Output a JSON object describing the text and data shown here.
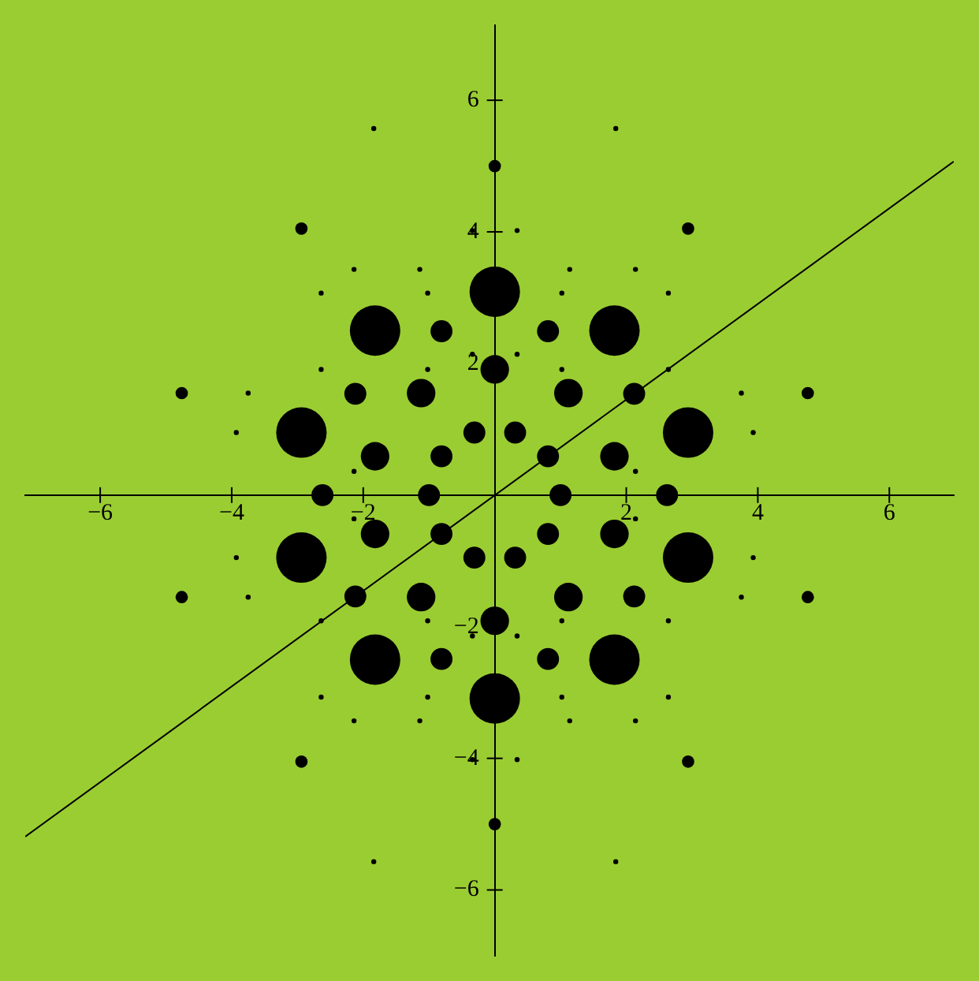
{
  "chart_data": {
    "type": "bubble",
    "xlim": [
      -7.14,
      6.98
    ],
    "ylim": [
      -7.0,
      7.14
    ],
    "xticks": [
      {
        "value": -6,
        "label": "−6"
      },
      {
        "value": -4,
        "label": "−4"
      },
      {
        "value": -2,
        "label": "−2"
      },
      2,
      4,
      6
    ],
    "yticks": [
      {
        "value": -6,
        "label": "−6"
      },
      {
        "value": -4,
        "label": "−4"
      },
      {
        "value": -2,
        "label": "−2"
      },
      2,
      4,
      6
    ],
    "grid": false,
    "legend": false,
    "series": [
      {
        "type": "bubble",
        "color": "#000000",
        "x": [
          0,
          1.82,
          2.94,
          2.94,
          1.82,
          0,
          -1.82,
          -2.94,
          -2.94,
          -1.82,
          0,
          1.12,
          1.82,
          1.82,
          1.12,
          0,
          -1.12,
          -1.82,
          -1.82,
          -1.12,
          2.62,
          2.12,
          0.81,
          -0.81,
          -2.12,
          -2.62,
          -2.12,
          -0.81,
          0.81,
          2.12,
          1,
          0.81,
          0.31,
          -0.31,
          -0.81,
          -1,
          -0.81,
          -0.31,
          0.31,
          0.81,
          4.76,
          2.94,
          0,
          -2.94,
          -4.76,
          -4.76,
          -2.94,
          0,
          2.94,
          4.76,
          1.02,
          -1.02,
          1.02,
          -1.02,
          2.64,
          -2.64,
          2.64,
          -2.64,
          1.14,
          -1.14,
          1.14,
          -1.14,
          2.14,
          -2.14,
          2.14,
          -2.14,
          1.84,
          -1.84,
          1.84,
          -1.84,
          3.93,
          -3.93,
          3.93,
          -3.93,
          3.75,
          -3.75,
          3.75,
          -3.75,
          0.34,
          -0.34,
          0.34,
          -0.34,
          0.34,
          -0.34,
          0.34,
          -0.34,
          1.02,
          -1.02,
          1.02,
          -1.02,
          2.64,
          -2.64,
          2.64,
          -2.64,
          2.14,
          -2.14,
          2.14,
          -2.14
        ],
        "values": [
          3.09,
          2.5,
          0.95,
          -0.95,
          -2.5,
          -3.09,
          -2.5,
          -0.95,
          0.95,
          2.5,
          1.91,
          1.55,
          0.59,
          -0.59,
          -1.55,
          -1.91,
          -1.55,
          -0.59,
          0.59,
          1.55,
          0,
          1.54,
          2.49,
          2.49,
          1.54,
          0,
          -1.54,
          -2.49,
          -2.49,
          -1.54,
          0,
          0.59,
          0.95,
          0.95,
          0.59,
          0,
          -0.59,
          -0.95,
          -0.95,
          -0.59,
          1.55,
          4.05,
          5,
          4.05,
          1.55,
          -1.55,
          -4.05,
          -5,
          -4.05,
          -1.55,
          3.07,
          3.07,
          -3.07,
          -3.07,
          3.07,
          3.07,
          -3.07,
          -3.07,
          3.43,
          3.43,
          -3.43,
          -3.43,
          3.43,
          3.43,
          -3.43,
          -3.43,
          5.57,
          5.57,
          -5.57,
          -5.57,
          0.95,
          0.95,
          -0.95,
          -0.95,
          1.55,
          1.55,
          -1.55,
          -1.55,
          4.02,
          4.02,
          -4.02,
          -4.02,
          2.14,
          2.14,
          -2.14,
          -2.14,
          1.91,
          1.91,
          -1.91,
          -1.91,
          1.91,
          1.91,
          -1.91,
          -1.91,
          0.36,
          0.36,
          -0.36,
          -0.36
        ],
        "sizes": [
          1,
          1,
          1,
          1,
          1,
          1,
          1,
          1,
          1,
          1,
          0.32,
          0.32,
          0.32,
          0.32,
          0.32,
          0.32,
          0.32,
          0.32,
          0.32,
          0.32,
          0.19,
          0.19,
          0.19,
          0.19,
          0.19,
          0.19,
          0.19,
          0.19,
          0.19,
          0.19,
          0.19,
          0.19,
          0.19,
          0.19,
          0.19,
          0.19,
          0.19,
          0.19,
          0.19,
          0.19,
          0.06,
          0.06,
          0.06,
          0.06,
          0.06,
          0.06,
          0.06,
          0.06,
          0.06,
          0.06,
          0.01,
          0.01,
          0.01,
          0.01,
          0.01,
          0.01,
          0.01,
          0.01,
          0.01,
          0.01,
          0.01,
          0.01,
          0.01,
          0.01,
          0.01,
          0.01,
          0.01,
          0.01,
          0.01,
          0.01,
          0.01,
          0.01,
          0.01,
          0.01,
          0.01,
          0.01,
          0.01,
          0.01,
          0.01,
          0.01,
          0.01,
          0.01,
          0.01,
          0.01,
          0.01,
          0.01,
          0.01,
          0.01,
          0.01,
          0.01,
          0.01,
          0.01,
          0.01,
          0.01,
          0.01,
          0.01,
          0.01,
          0.01
        ]
      },
      {
        "type": "line",
        "color": "#000000",
        "x": [
          -7.14,
          6.98
        ],
        "values": [
          -5.19,
          5.07
        ]
      }
    ]
  }
}
